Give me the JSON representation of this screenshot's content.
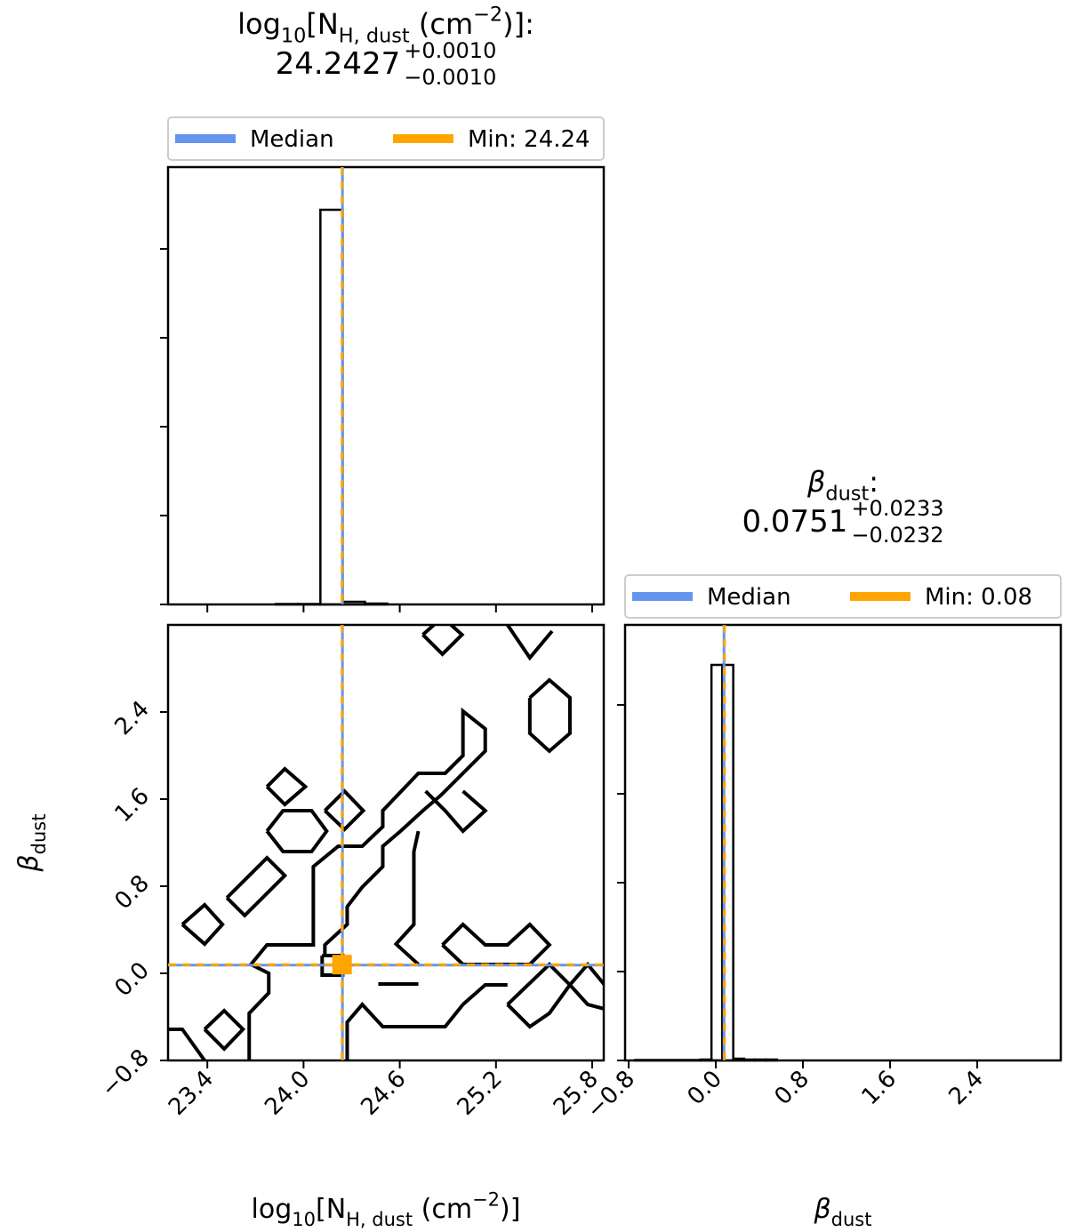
{
  "chart_data": [
    {
      "type": "histogram",
      "title": [
        "log",
        "10",
        "[N",
        "H, dust",
        " (cm",
        "−2",
        ")]:"
      ],
      "median": 24.2427,
      "err_plus": {
        "value": 0.001,
        "label": "+0.0010"
      },
      "err_minus": {
        "value": -0.001,
        "label": "−0.0010"
      },
      "series": [
        {
          "name": "Median",
          "color": "#6495ed"
        },
        {
          "name": "Min: 24.24",
          "color": "#ffa500",
          "value": 24.24
        }
      ],
      "bins": [
        23.827,
        23.966,
        24.105,
        24.244,
        24.383,
        24.522
      ],
      "values": [
        0.005,
        0.005,
        4.44,
        0.03,
        0.01
      ],
      "color": "#000000",
      "xlim": [
        23.155,
        25.872
      ],
      "xticks": [
        23.4,
        24,
        24.6,
        25.2,
        25.8
      ],
      "ylim": [
        0,
        4.92
      ],
      "yticks": [
        0,
        1,
        2,
        3,
        4
      ]
    },
    {
      "type": "contour",
      "xlabel": [
        "log",
        "10",
        "[N",
        "H, dust",
        " (cm",
        "−2",
        ")]"
      ],
      "ylabel": [
        "β",
        "dust"
      ],
      "xlim": [
        23.155,
        25.872
      ],
      "xticks": [
        23.4,
        {
          "value": 24,
          "label": "24.0"
        },
        24.6,
        25.2,
        25.8
      ],
      "ylim": [
        -0.8,
        3.2
      ],
      "yticks": [
        {
          "value": -0.8,
          "label": "−0.8"
        },
        {
          "value": 0,
          "label": "0.0"
        },
        0.8,
        1.6,
        2.4
      ],
      "color": "#000000",
      "contours": [
        {
          "x": [
            23.244,
            23.383,
            23.494,
            23.383,
            23.244
          ],
          "y": [
            0.449,
            0.629,
            0.449,
            0.269,
            0.449
          ]
        },
        {
          "x": [
            23.383,
            23.505,
            23.622,
            23.505,
            23.383
          ],
          "y": [
            -0.514,
            -0.343,
            -0.514,
            -0.694,
            -0.514
          ]
        },
        {
          "x": [
            23.522,
            23.772,
            23.883,
            23.633,
            23.522
          ],
          "y": [
            0.694,
            1.061,
            0.898,
            0.531,
            0.694
          ]
        },
        {
          "x": [
            23.772,
            23.872,
            24.05,
            24.144,
            24.05,
            23.872,
            23.772
          ],
          "y": [
            1.306,
            1.494,
            1.494,
            1.306,
            1.118,
            1.118,
            1.306
          ]
        },
        {
          "x": [
            23.772,
            23.883,
            24.011,
            23.883,
            23.772
          ],
          "y": [
            1.714,
            1.878,
            1.714,
            1.551,
            1.714
          ]
        },
        {
          "x": [
            24.133,
            24.255,
            24.372,
            24.255,
            24.133
          ],
          "y": [
            1.494,
            1.673,
            1.494,
            1.322,
            1.494
          ]
        },
        {
          "x": [
            24.744,
            24.866,
            24.988,
            24.866,
            24.744
          ],
          "y": [
            3.11,
            3.27,
            3.11,
            2.931,
            3.11
          ]
        },
        {
          "x": [
            25.272,
            25.411,
            25.55
          ],
          "y": [
            3.2,
            2.898,
            3.143
          ]
        },
        {
          "x": [
            25.411,
            25.533,
            25.661,
            25.661,
            25.533,
            25.411,
            25.411
          ],
          "y": [
            2.531,
            2.694,
            2.531,
            2.204,
            2.041,
            2.204,
            2.531
          ]
        },
        {
          "x": [
            23.155,
            23.244,
            23.383
          ],
          "y": [
            -0.514,
            -0.514,
            -0.8
          ]
        },
        {
          "x": [
            23.661,
            23.661,
            23.783,
            23.783,
            23.672,
            23.772,
            24.061,
            24.061,
            24.216,
            24.366,
            24.494,
            24.494,
            24.716,
            24.883,
            24.994,
            24.994,
            25.133,
            25.133,
            24.994,
            24.855,
            24.744,
            24.605,
            24.494,
            24.494,
            24.366,
            24.272,
            24.272,
            24.133,
            24.133
          ],
          "y": [
            -0.8,
            -0.367,
            -0.18,
            0,
            0.082,
            0.261,
            0.261,
            0.98,
            1.167,
            1.167,
            1.347,
            1.494,
            1.837,
            1.837,
            2,
            2.408,
            2.245,
            2.041,
            1.837,
            1.633,
            1.494,
            1.306,
            1.167,
            0.98,
            0.792,
            0.612,
            0.449,
            0.261,
            0.147
          ]
        },
        {
          "x": [
            24.716,
            24.688,
            24.688,
            24.577,
            24.716
          ],
          "y": [
            1.306,
            1.118,
            0.449,
            0.269,
            0.082
          ]
        },
        {
          "x": [
            24.761,
            24.883,
            24.994,
            25.133,
            24.994
          ],
          "y": [
            1.673,
            1.494,
            1.306,
            1.494,
            1.673
          ]
        },
        {
          "x": [
            24.866,
            24.994,
            25.133,
            25.272,
            25.411,
            25.533,
            25.411,
            24.994,
            24.866
          ],
          "y": [
            0.261,
            0.449,
            0.261,
            0.261,
            0.449,
            0.261,
            0.082,
            0.082,
            0.261
          ]
        },
        {
          "x": [
            25.272,
            25.533,
            25.661,
            25.772,
            25.877
          ],
          "y": [
            -0.286,
            0.082,
            -0.106,
            0.082,
            -0.106
          ]
        },
        {
          "x": [
            25.272,
            25.411,
            25.533,
            25.661
          ],
          "y": [
            -0.286,
            -0.49,
            -0.367,
            -0.106
          ]
        },
        {
          "x": [
            25.661,
            25.772,
            25.877
          ],
          "y": [
            -0.106,
            -0.286,
            -0.327
          ]
        },
        {
          "x": [
            24.994,
            24.883,
            24.494,
            24.366,
            24.272,
            24.272
          ],
          "y": [
            -0.286,
            -0.49,
            -0.49,
            -0.286,
            -0.449,
            -0.8
          ]
        },
        {
          "x": [
            24.994,
            25.133,
            25.272
          ],
          "y": [
            -0.286,
            -0.106,
            -0.106
          ]
        },
        {
          "x": [
            24.466,
            24.716
          ],
          "y": [
            -0.098,
            -0.098
          ]
        },
        {
          "x": [
            24.116,
            24.244,
            24.244,
            24.116,
            24.116
          ],
          "y": [
            0.163,
            0.163,
            -0.016,
            -0.016,
            0.163
          ]
        }
      ]
    },
    {
      "type": "histogram",
      "title": [
        "β",
        "dust",
        ":"
      ],
      "median": 0.0751,
      "err_plus": {
        "value": 0.0233,
        "label": "+0.0233"
      },
      "err_minus": {
        "value": -0.0232,
        "label": "−0.0232"
      },
      "series": [
        {
          "name": "Median",
          "color": "#6495ed"
        },
        {
          "name": "Min: 0.08",
          "color": "#ffa500",
          "value": 0.08
        }
      ],
      "bins": [
        -0.74,
        -0.14,
        -0.04,
        0.06,
        0.16,
        0.26,
        0.36,
        0.46,
        0.56
      ],
      "values": [
        0.005,
        0.01,
        4.45,
        4.45,
        0.02,
        0.01,
        0.01,
        0.01
      ],
      "color": "#000000",
      "xlabel": [
        "β",
        "dust"
      ],
      "xlim": [
        -0.833,
        3.167
      ],
      "xticks": [
        {
          "value": -0.8,
          "label": "−0.8"
        },
        {
          "value": 0,
          "label": "0.0"
        },
        0.8,
        1.6,
        2.4
      ],
      "ylim": [
        0,
        4.9
      ],
      "yticks": [
        0,
        1,
        2,
        3,
        4
      ]
    }
  ]
}
